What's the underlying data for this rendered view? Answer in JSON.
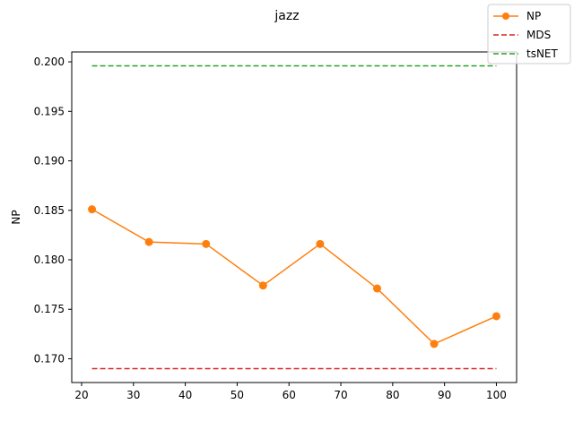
{
  "chart_data": {
    "type": "line",
    "title": "jazz",
    "xlabel": "",
    "ylabel": "NP",
    "xlim": [
      18.1,
      103.9
    ],
    "ylim": [
      0.1676,
      0.201
    ],
    "x_ticks": [
      20,
      30,
      40,
      50,
      60,
      70,
      80,
      90,
      100
    ],
    "x_tick_labels": [
      "20",
      "30",
      "40",
      "50",
      "60",
      "70",
      "80",
      "90",
      "100"
    ],
    "y_ticks": [
      0.17,
      0.175,
      0.18,
      0.185,
      0.19,
      0.195,
      0.2
    ],
    "y_tick_labels": [
      "0.170",
      "0.175",
      "0.180",
      "0.185",
      "0.190",
      "0.195",
      "0.200"
    ],
    "grid": false,
    "legend_position": "top-right",
    "series": [
      {
        "name": "NP",
        "style": "line-marker",
        "color": "#ff7f0e",
        "x": [
          22,
          33,
          44,
          55,
          66,
          77,
          88,
          100
        ],
        "values": [
          0.1851,
          0.1818,
          0.1816,
          0.1774,
          0.1816,
          0.1771,
          0.1715,
          0.1743
        ]
      },
      {
        "name": "MDS",
        "style": "dashed",
        "color": "#d62728",
        "x": [
          22,
          100
        ],
        "values": [
          0.169,
          0.169
        ]
      },
      {
        "name": "tsNET",
        "style": "dashed",
        "color": "#2ca02c",
        "x": [
          22,
          100
        ],
        "values": [
          0.1996,
          0.1996
        ]
      }
    ]
  }
}
